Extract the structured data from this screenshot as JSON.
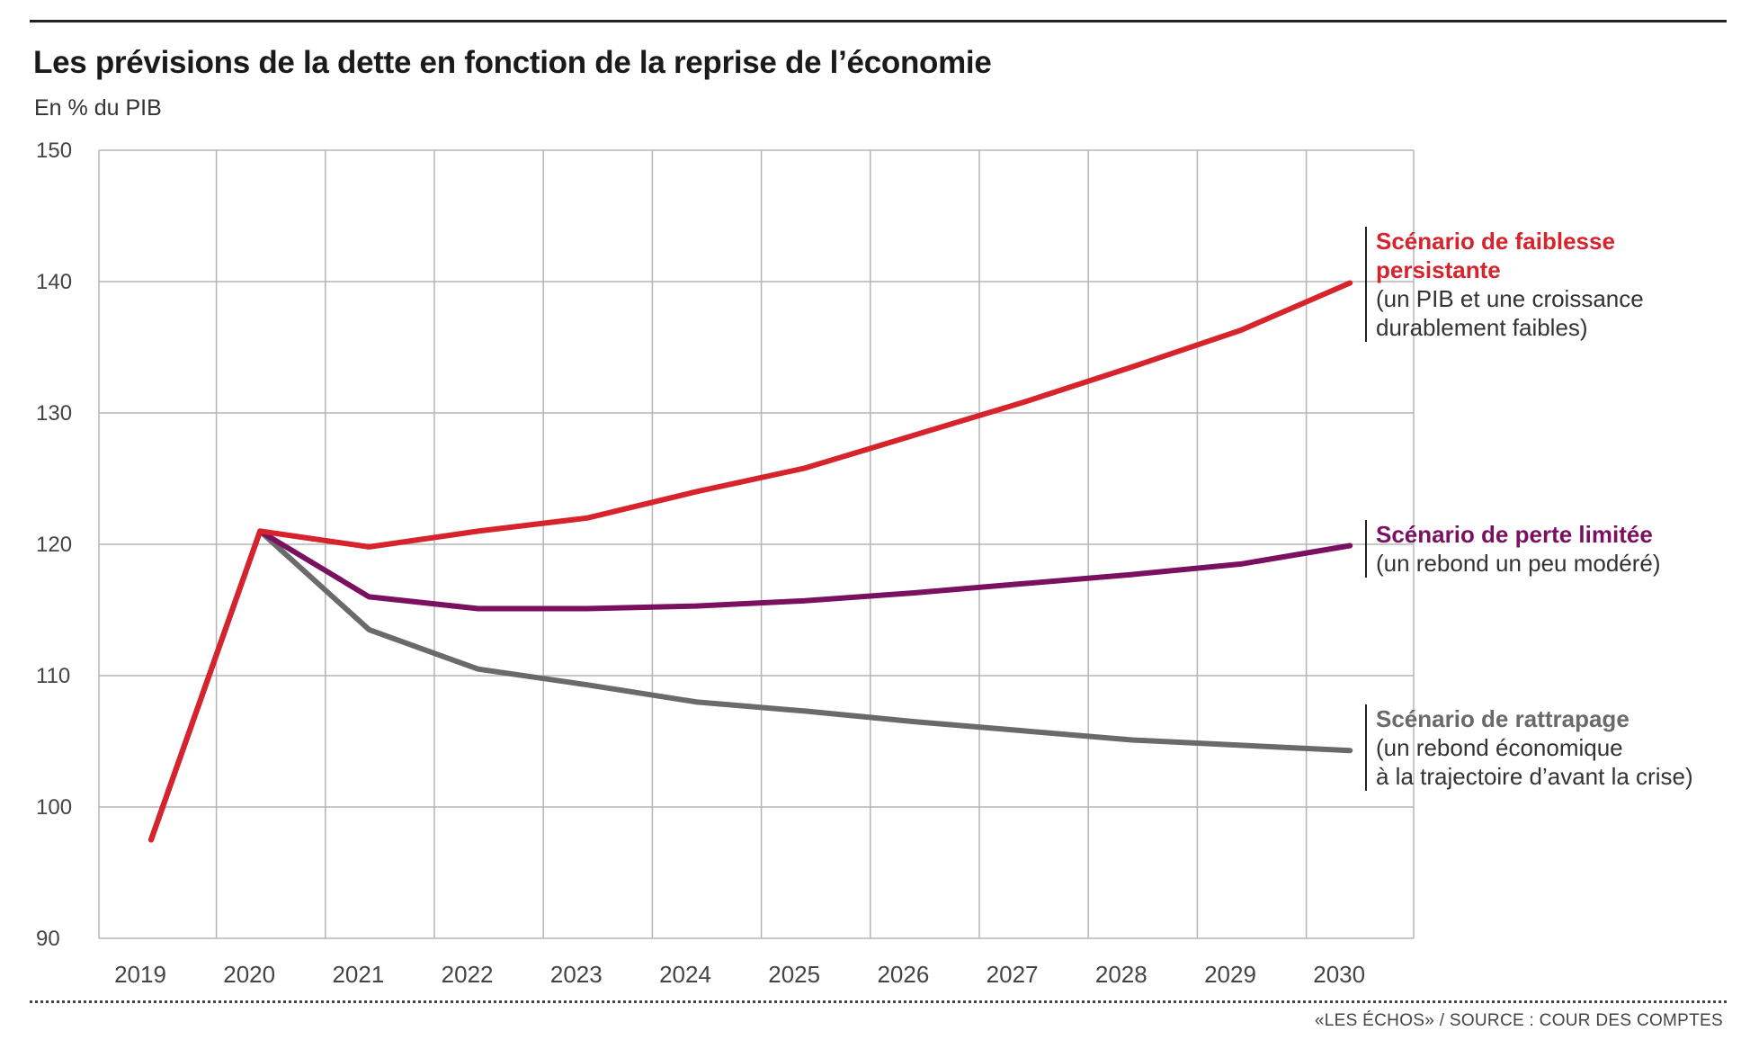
{
  "header": {
    "title": "Les prévisions de la dette en fonction de la reprise de l’économie",
    "subtitle": "En % du PIB"
  },
  "footer": {
    "source": "«LES ÉCHOS» / SOURCE : COUR DES COMPTES"
  },
  "labels": [
    {
      "head": "Scénario de faiblesse persistante",
      "head_lines": [
        "Scénario de faiblesse",
        "persistante"
      ],
      "desc_lines": [
        "(un PIB et une croissance",
        "durablement faibles)"
      ]
    },
    {
      "head": "Scénario de perte limitée",
      "head_lines": [
        "Scénario de perte limitée"
      ],
      "desc_lines": [
        "(un rebond un peu modéré)"
      ]
    },
    {
      "head": "Scénario de rattrapage",
      "head_lines": [
        "Scénario de rattrapage"
      ],
      "desc_lines": [
        "(un rebond économique",
        "à la trajectoire d’avant la crise)"
      ]
    }
  ],
  "chart_data": {
    "type": "line",
    "title": "Les prévisions de la dette en fonction de la reprise de l’économie",
    "subtitle": "En % du PIB",
    "xlabel": "",
    "ylabel": "",
    "categories": [
      "2019",
      "2020",
      "2021",
      "2022",
      "2023",
      "2024",
      "2025",
      "2026",
      "2027",
      "2028",
      "2029",
      "2030"
    ],
    "ylim": [
      90,
      150
    ],
    "yticks": [
      90,
      100,
      110,
      120,
      130,
      140,
      150
    ],
    "grid": true,
    "series": [
      {
        "name": "Scénario de faiblesse persistante",
        "color": "#d7232b",
        "values": [
          97.5,
          121.0,
          119.8,
          121.0,
          122.0,
          124.0,
          125.8,
          128.3,
          130.8,
          133.5,
          136.3,
          139.9
        ]
      },
      {
        "name": "Scénario de perte limitée",
        "color": "#7a1060",
        "values": [
          97.5,
          121.0,
          116.0,
          115.1,
          115.1,
          115.3,
          115.7,
          116.3,
          117.0,
          117.7,
          118.5,
          119.9
        ]
      },
      {
        "name": "Scénario de rattrapage",
        "color": "#6a6a6a",
        "values": [
          97.5,
          121.0,
          113.5,
          110.5,
          109.3,
          108.0,
          107.3,
          106.5,
          105.8,
          105.1,
          104.7,
          104.3
        ]
      }
    ]
  }
}
